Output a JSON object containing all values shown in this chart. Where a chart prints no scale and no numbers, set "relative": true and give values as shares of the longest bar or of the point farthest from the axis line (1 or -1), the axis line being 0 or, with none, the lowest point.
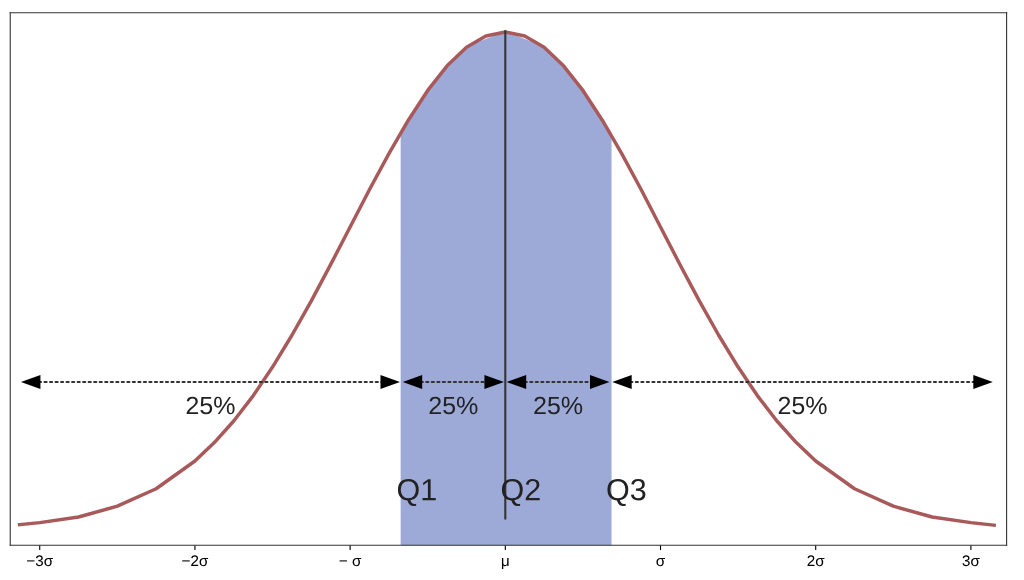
{
  "chart_data": {
    "type": "line",
    "relative": true,
    "xlim": [
      -3.19,
      3.23
    ],
    "xticks": [
      {
        "value": -3,
        "label": "−3σ"
      },
      {
        "value": -2,
        "label": "−2σ"
      },
      {
        "value": -1,
        "label": "− σ"
      },
      {
        "value": 0,
        "label": "μ"
      },
      {
        "value": 1,
        "label": "σ"
      },
      {
        "value": 2,
        "label": "2σ"
      },
      {
        "value": 3,
        "label": "3σ"
      }
    ],
    "tick_labels": "x",
    "grid": false,
    "legend": false,
    "marker": "none",
    "line_style": "solid",
    "series": [
      {
        "type": "area",
        "color": "#9daad8",
        "x": [
          -0.67,
          -0.5,
          -0.25,
          0,
          0.25,
          0.5,
          0.68
        ],
        "values": [
          0.805,
          0.886,
          0.97,
          1,
          0.97,
          0.886,
          0.8
        ]
      },
      {
        "color": "#a85a5a",
        "x": [
          -3.13,
          -3,
          -2.75,
          -2.5,
          -2.25,
          -2,
          -1.875,
          -1.75,
          -1.625,
          -1.5,
          -1.375,
          -1.25,
          -1.125,
          -1,
          -0.875,
          -0.75,
          -0.625,
          -0.5,
          -0.375,
          -0.25,
          -0.125,
          0,
          0.125,
          0.25,
          0.375,
          0.5,
          0.625,
          0.75,
          0.875,
          1,
          1.125,
          1.25,
          1.375,
          1.5,
          1.625,
          1.75,
          1.875,
          2,
          2.25,
          2.5,
          2.75,
          3,
          3.15
        ],
        "values": [
          0.04,
          0.044,
          0.055,
          0.076,
          0.11,
          0.164,
          0.2,
          0.242,
          0.291,
          0.347,
          0.409,
          0.476,
          0.547,
          0.62,
          0.693,
          0.763,
          0.828,
          0.886,
          0.934,
          0.97,
          0.992,
          1,
          0.992,
          0.97,
          0.934,
          0.886,
          0.828,
          0.763,
          0.693,
          0.62,
          0.547,
          0.476,
          0.409,
          0.347,
          0.291,
          0.242,
          0.2,
          0.164,
          0.11,
          0.076,
          0.055,
          0.044,
          0.039
        ]
      }
    ],
    "ref_lines": [
      {
        "axis": "x",
        "value": 0,
        "color": "#333333"
      }
    ],
    "annotations": [
      "25%",
      "25%",
      "25%",
      "25%",
      "Q1",
      "Q2",
      "Q3"
    ]
  }
}
